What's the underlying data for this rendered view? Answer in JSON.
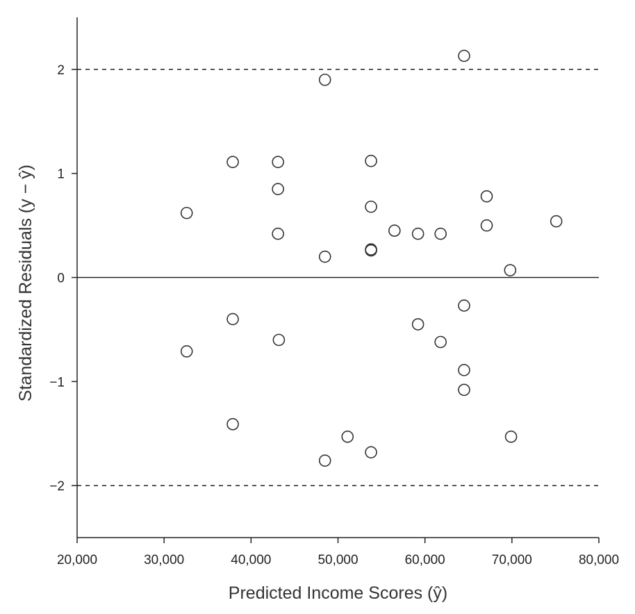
{
  "chart_data": {
    "type": "scatter",
    "xlabel": "Predicted Income Scores (ŷ)",
    "ylabel": "Standardized Residuals (y − ŷ)",
    "xlim": [
      20000,
      80000
    ],
    "ylim": [
      -2.5,
      2.5
    ],
    "x_ticks": [
      20000,
      30000,
      40000,
      50000,
      60000,
      70000,
      80000
    ],
    "x_tick_labels": [
      "20,000",
      "30,000",
      "40,000",
      "50,000",
      "60,000",
      "70,000",
      "80,000"
    ],
    "y_ticks": [
      2,
      1,
      0,
      -1,
      -2
    ],
    "y_tick_labels": [
      "2",
      "1",
      "0",
      "−1",
      "−2"
    ],
    "reference_lines": [
      {
        "y": 2,
        "style": "dashed"
      },
      {
        "y": 0,
        "style": "solid"
      },
      {
        "y": -2,
        "style": "dashed"
      }
    ],
    "marker": "open-circle",
    "grid": false,
    "colors": {
      "marks": "#333333",
      "axes": "#222222"
    },
    "points": [
      {
        "x": 64500,
        "y": 2.13
      },
      {
        "x": 48500,
        "y": 1.9
      },
      {
        "x": 37900,
        "y": 1.11
      },
      {
        "x": 43100,
        "y": 1.11
      },
      {
        "x": 53800,
        "y": 1.12
      },
      {
        "x": 43100,
        "y": 0.85
      },
      {
        "x": 67100,
        "y": 0.78
      },
      {
        "x": 53800,
        "y": 0.68
      },
      {
        "x": 32600,
        "y": 0.62
      },
      {
        "x": 75100,
        "y": 0.54
      },
      {
        "x": 67100,
        "y": 0.5
      },
      {
        "x": 56500,
        "y": 0.45
      },
      {
        "x": 43100,
        "y": 0.42
      },
      {
        "x": 59200,
        "y": 0.42
      },
      {
        "x": 61800,
        "y": 0.42
      },
      {
        "x": 53800,
        "y": 0.27
      },
      {
        "x": 53800,
        "y": 0.26
      },
      {
        "x": 48500,
        "y": 0.2
      },
      {
        "x": 69800,
        "y": 0.07
      },
      {
        "x": 64500,
        "y": -0.27
      },
      {
        "x": 37900,
        "y": -0.4
      },
      {
        "x": 59200,
        "y": -0.45
      },
      {
        "x": 43200,
        "y": -0.6
      },
      {
        "x": 61800,
        "y": -0.62
      },
      {
        "x": 32600,
        "y": -0.71
      },
      {
        "x": 64500,
        "y": -0.89
      },
      {
        "x": 64500,
        "y": -1.08
      },
      {
        "x": 37900,
        "y": -1.41
      },
      {
        "x": 51100,
        "y": -1.53
      },
      {
        "x": 69900,
        "y": -1.53
      },
      {
        "x": 53800,
        "y": -1.68
      },
      {
        "x": 48500,
        "y": -1.76
      }
    ]
  }
}
